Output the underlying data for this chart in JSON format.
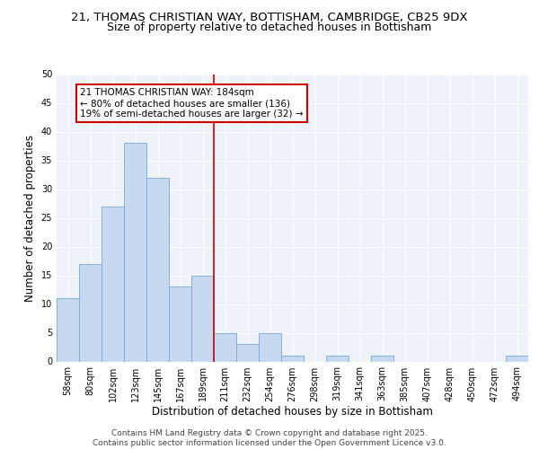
{
  "title_line1": "21, THOMAS CHRISTIAN WAY, BOTTISHAM, CAMBRIDGE, CB25 9DX",
  "title_line2": "Size of property relative to detached houses in Bottisham",
  "xlabel": "Distribution of detached houses by size in Bottisham",
  "ylabel": "Number of detached properties",
  "categories": [
    "58sqm",
    "80sqm",
    "102sqm",
    "123sqm",
    "145sqm",
    "167sqm",
    "189sqm",
    "211sqm",
    "232sqm",
    "254sqm",
    "276sqm",
    "298sqm",
    "319sqm",
    "341sqm",
    "363sqm",
    "385sqm",
    "407sqm",
    "428sqm",
    "450sqm",
    "472sqm",
    "494sqm"
  ],
  "values": [
    11,
    17,
    27,
    38,
    32,
    13,
    15,
    5,
    3,
    5,
    1,
    0,
    1,
    0,
    1,
    0,
    0,
    0,
    0,
    0,
    1
  ],
  "bar_color": "#c6d9f0",
  "bar_edge_color": "#7ba7d4",
  "ylim": [
    0,
    50
  ],
  "yticks": [
    0,
    5,
    10,
    15,
    20,
    25,
    30,
    35,
    40,
    45,
    50
  ],
  "red_line_x": 6.5,
  "annotation_text": "21 THOMAS CHRISTIAN WAY: 184sqm\n← 80% of detached houses are smaller (136)\n19% of semi-detached houses are larger (32) →",
  "annotation_box_color": "#ffffff",
  "annotation_box_edge": "#cc0000",
  "background_color": "#eef2f9",
  "grid_color": "#ffffff",
  "footer_text": "Contains HM Land Registry data © Crown copyright and database right 2025.\nContains public sector information licensed under the Open Government Licence v3.0.",
  "title_fontsize": 9.5,
  "subtitle_fontsize": 9,
  "axis_label_fontsize": 8.5,
  "tick_fontsize": 7,
  "annotation_fontsize": 7.5,
  "footer_fontsize": 6.5
}
